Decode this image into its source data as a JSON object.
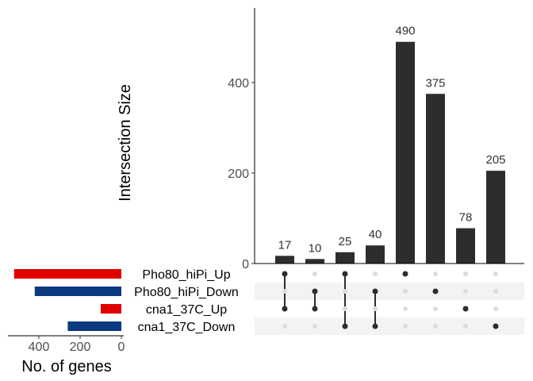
{
  "chart_data": {
    "type": "upset",
    "ylabel": "Intersection Size",
    "ylim": [
      0,
      560
    ],
    "yticks": [
      0,
      200,
      400
    ],
    "bar_color": "#2d2d2d",
    "sets": [
      {
        "name": "Pho80_hiPi_Up",
        "size": 520,
        "color": "#e00000"
      },
      {
        "name": "Pho80_hiPi_Down",
        "size": 420,
        "color": "#0b3a7e"
      },
      {
        "name": "cna1_37C_Up",
        "size": 100,
        "color": "#e00000"
      },
      {
        "name": "cna1_37C_Down",
        "size": 260,
        "color": "#0b3a7e"
      }
    ],
    "set_size_axis": {
      "label": "No. of genes",
      "ticks": [
        400,
        200,
        0
      ],
      "xlim": [
        560,
        0
      ]
    },
    "intersections": [
      {
        "value": 17,
        "label": "17",
        "members": [
          "Pho80_hiPi_Up",
          "cna1_37C_Up"
        ]
      },
      {
        "value": 10,
        "label": "10",
        "members": [
          "Pho80_hiPi_Down",
          "cna1_37C_Up"
        ]
      },
      {
        "value": 25,
        "label": "25",
        "members": [
          "Pho80_hiPi_Up",
          "cna1_37C_Down"
        ]
      },
      {
        "value": 40,
        "label": "40",
        "members": [
          "Pho80_hiPi_Down",
          "cna1_37C_Down"
        ]
      },
      {
        "value": 490,
        "label": "490",
        "members": [
          "Pho80_hiPi_Up"
        ]
      },
      {
        "value": 375,
        "label": "375",
        "members": [
          "Pho80_hiPi_Down"
        ]
      },
      {
        "value": 78,
        "label": "78",
        "members": [
          "cna1_37C_Up"
        ]
      },
      {
        "value": 205,
        "label": "205",
        "members": [
          "cna1_37C_Down"
        ]
      }
    ]
  }
}
